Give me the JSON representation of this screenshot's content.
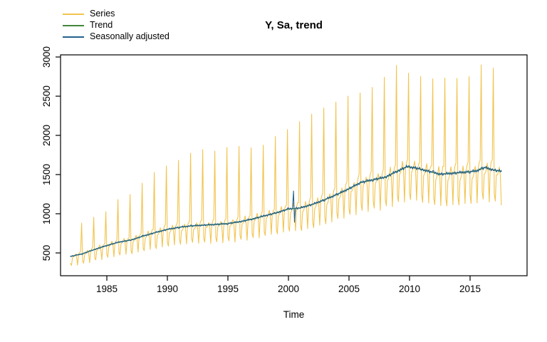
{
  "chart_data": {
    "type": "line",
    "title": "Y, Sa, trend",
    "xlabel": "Time",
    "ylabel": "",
    "grid": false,
    "legend_position": "top-left",
    "background": "#ffffff",
    "axis_color": "#000000",
    "legend": [
      {
        "label": "Series",
        "color": "#F2C44F"
      },
      {
        "label": "Trend",
        "color": "#44873B"
      },
      {
        "label": "Seasonally adjusted",
        "color": "#25618E"
      }
    ],
    "x_ticks": [
      1985,
      1990,
      1995,
      2000,
      2005,
      2010,
      2015
    ],
    "y_ticks": [
      500,
      1000,
      1500,
      2000,
      2500,
      3000
    ],
    "x_range": [
      1981.2,
      2019.7
    ],
    "y_range": [
      210,
      3025
    ],
    "frequency": "monthly",
    "time_start": 1982.0,
    "time_end": 2017.58,
    "trend_points": [
      [
        1982,
        455
      ],
      [
        1983,
        490
      ],
      [
        1984,
        545
      ],
      [
        1985,
        595
      ],
      [
        1986,
        638
      ],
      [
        1987,
        665
      ],
      [
        1988,
        715
      ],
      [
        1989,
        760
      ],
      [
        1990,
        800
      ],
      [
        1991,
        828
      ],
      [
        1992,
        845
      ],
      [
        1993,
        855
      ],
      [
        1994,
        863
      ],
      [
        1995,
        875
      ],
      [
        1996,
        898
      ],
      [
        1997,
        932
      ],
      [
        1998,
        972
      ],
      [
        1999,
        1012
      ],
      [
        2000,
        1060
      ],
      [
        2001,
        1075
      ],
      [
        2002,
        1120
      ],
      [
        2003,
        1180
      ],
      [
        2004,
        1245
      ],
      [
        2005,
        1320
      ],
      [
        2006,
        1400
      ],
      [
        2007,
        1435
      ],
      [
        2008,
        1465
      ],
      [
        2009,
        1545
      ],
      [
        2009.8,
        1600
      ],
      [
        2010.5,
        1585
      ],
      [
        2011.5,
        1545
      ],
      [
        2012.5,
        1505
      ],
      [
        2013.5,
        1515
      ],
      [
        2014.5,
        1530
      ],
      [
        2015.5,
        1545
      ],
      [
        2016.2,
        1590
      ],
      [
        2016.9,
        1560
      ],
      [
        2017.58,
        1540
      ]
    ],
    "december_peaks": {
      "start_year": 1982,
      "values": [
        882,
        955,
        1027,
        1182,
        1245,
        1391,
        1527,
        1609,
        1682,
        1773,
        1818,
        1800,
        1845,
        1860,
        1840,
        1875,
        1985,
        2075,
        2175,
        2270,
        2350,
        2425,
        2500,
        2540,
        2612,
        2742,
        2894,
        2794,
        2752,
        2721,
        2733,
        2727,
        2750,
        2900,
        2858
      ]
    },
    "seasonal_factors": [
      0.8,
      0.74,
      0.95,
      0.97,
      1.0,
      1.05,
      0.97,
      0.73,
      1.0,
      1.05,
      1.07,
      1.82
    ],
    "series_jitter": [
      4,
      -6,
      3,
      7,
      -5,
      2,
      -8,
      6,
      -3,
      1,
      5,
      -4
    ],
    "sa_wiggle": [
      12,
      -9,
      16,
      -13,
      7,
      -17,
      20,
      -7,
      13,
      -18,
      9,
      -5
    ],
    "sa_outlier": {
      "time": 2000.42,
      "high": 1290,
      "low": 893
    }
  }
}
